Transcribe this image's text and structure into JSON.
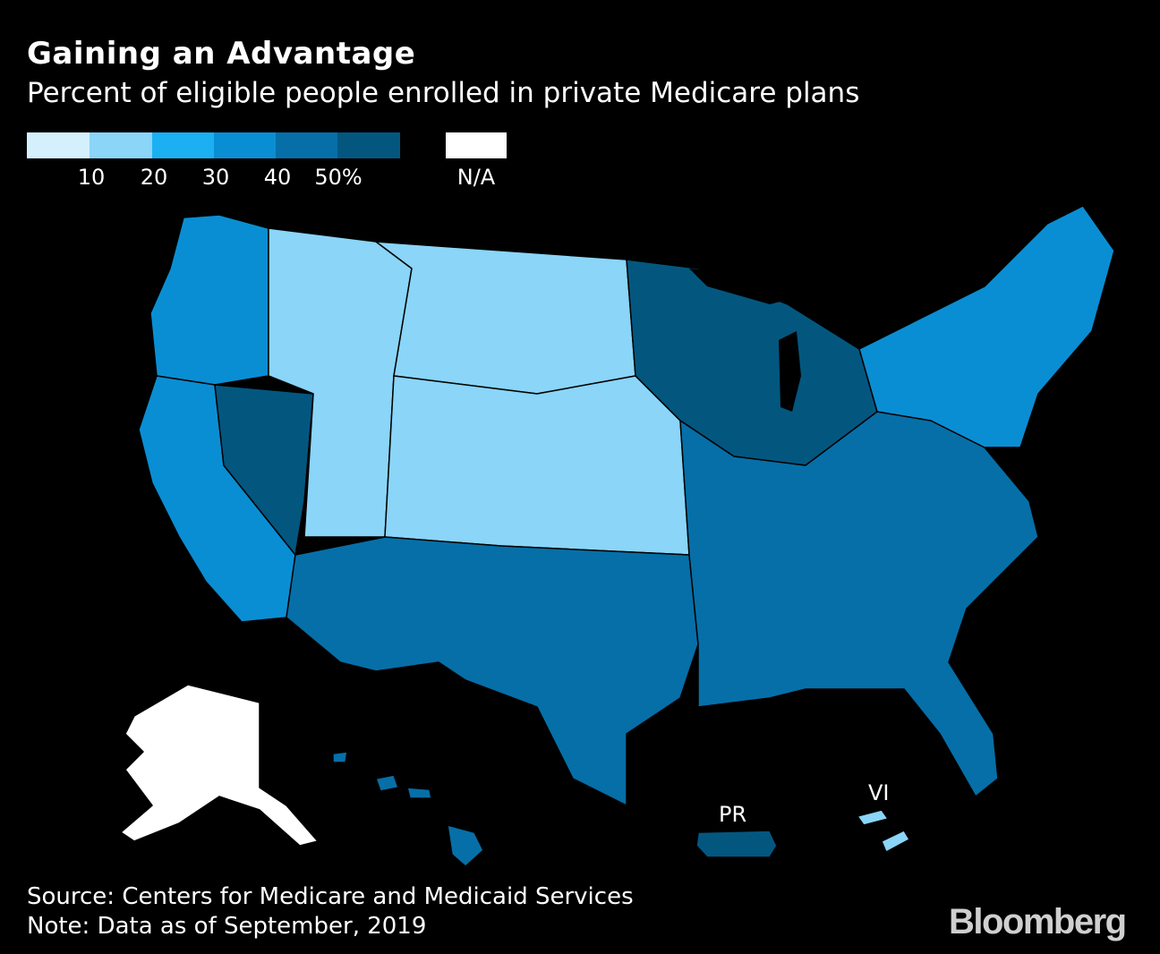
{
  "header": {
    "title": "Gaining an Advantage",
    "subtitle": "Percent of eligible people enrolled in private Medicare plans"
  },
  "legend": {
    "bins": [
      {
        "color": "#d4f0fc"
      },
      {
        "color": "#8ad5f8"
      },
      {
        "color": "#1ab0f2"
      },
      {
        "color": "#0a8ed3"
      },
      {
        "color": "#066fa8"
      },
      {
        "color": "#03577f"
      }
    ],
    "ticks": [
      "10",
      "20",
      "30",
      "40",
      "50%"
    ],
    "na_color": "#ffffff",
    "na_label": "N/A"
  },
  "map": {
    "regions": [
      {
        "name": "Pacific Northwest",
        "level": 3
      },
      {
        "name": "California",
        "level": 3
      },
      {
        "name": "Nevada",
        "level": 5
      },
      {
        "name": "Great Basin",
        "level": 1
      },
      {
        "name": "Northern Plains",
        "level": 1
      },
      {
        "name": "Central Plains",
        "level": 1
      },
      {
        "name": "Upper Midwest",
        "level": 5
      },
      {
        "name": "Texas",
        "level": 4
      },
      {
        "name": "Southeast",
        "level": 4
      },
      {
        "name": "Northeast",
        "level": 3
      },
      {
        "name": "Alaska",
        "level": "N/A"
      },
      {
        "name": "Hawaii",
        "level": 4
      },
      {
        "name": "Puerto Rico",
        "level": 5
      },
      {
        "name": "Virgin Islands",
        "level": 1
      }
    ],
    "labels": {
      "pr": "PR",
      "vi": "VI"
    }
  },
  "footer": {
    "source": "Source: Centers for Medicare and Medicaid Services",
    "note": "Note: Data as of September, 2019",
    "logo": "Bloomberg"
  }
}
